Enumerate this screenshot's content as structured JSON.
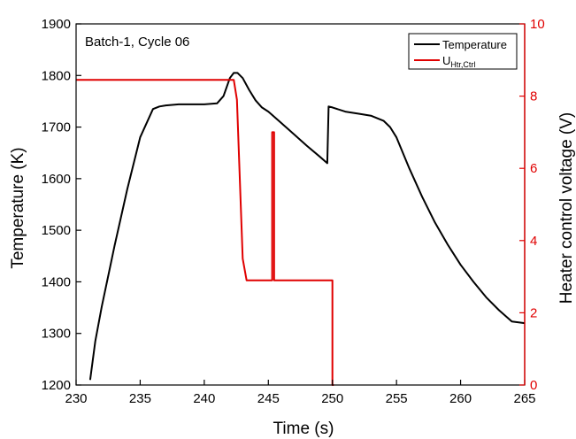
{
  "chart_data": {
    "type": "line",
    "annotation": "Batch-1, Cycle 06",
    "xlabel": "Time (s)",
    "ylabel_left": "Temperature (K)",
    "ylabel_right": "Heater control voltage (V)",
    "xlim": [
      230,
      265
    ],
    "ylim_left": [
      1200,
      1900
    ],
    "ylim_right": [
      0,
      10
    ],
    "x_ticks": [
      230,
      235,
      240,
      245,
      250,
      255,
      260,
      265
    ],
    "y_left_ticks": [
      1200,
      1300,
      1400,
      1500,
      1600,
      1700,
      1800,
      1900
    ],
    "y_right_ticks": [
      0,
      2,
      4,
      6,
      8,
      10
    ],
    "grid": false,
    "legend_position": "top-right",
    "colors": {
      "temperature": "#000000",
      "voltage": "#e00000"
    },
    "series": [
      {
        "name": "Temperature",
        "axis": "left",
        "x": [
          231.1,
          231.5,
          232,
          233,
          234,
          235,
          236,
          236.5,
          237,
          238,
          239,
          240,
          241,
          241.5,
          242,
          242.3,
          242.6,
          243,
          243.5,
          244,
          244.5,
          245,
          246,
          247,
          248,
          249,
          249.6,
          249.7,
          250,
          251,
          252,
          253,
          254,
          254.5,
          255,
          256,
          257,
          258,
          259,
          260,
          261,
          262,
          263,
          264,
          265
        ],
        "y": [
          1210,
          1285,
          1352,
          1470,
          1580,
          1680,
          1735,
          1740,
          1742,
          1744,
          1744,
          1744,
          1746,
          1760,
          1795,
          1805,
          1805,
          1795,
          1772,
          1752,
          1738,
          1730,
          1708,
          1686,
          1664,
          1643,
          1630,
          1740,
          1738,
          1730,
          1726,
          1722,
          1712,
          1700,
          1680,
          1620,
          1565,
          1515,
          1472,
          1433,
          1400,
          1370,
          1345,
          1323,
          1320
        ]
      },
      {
        "name": "U",
        "name_sub": "Htr,Ctrl",
        "axis": "right",
        "x": [
          230,
          242.3,
          242.55,
          243,
          243.3,
          245.3,
          245.3,
          245.45,
          245.45,
          250,
          250,
          250.1
        ],
        "y": [
          8.45,
          8.45,
          7.9,
          3.5,
          2.9,
          2.9,
          7.0,
          7.0,
          2.9,
          2.9,
          0,
          0
        ]
      }
    ]
  }
}
